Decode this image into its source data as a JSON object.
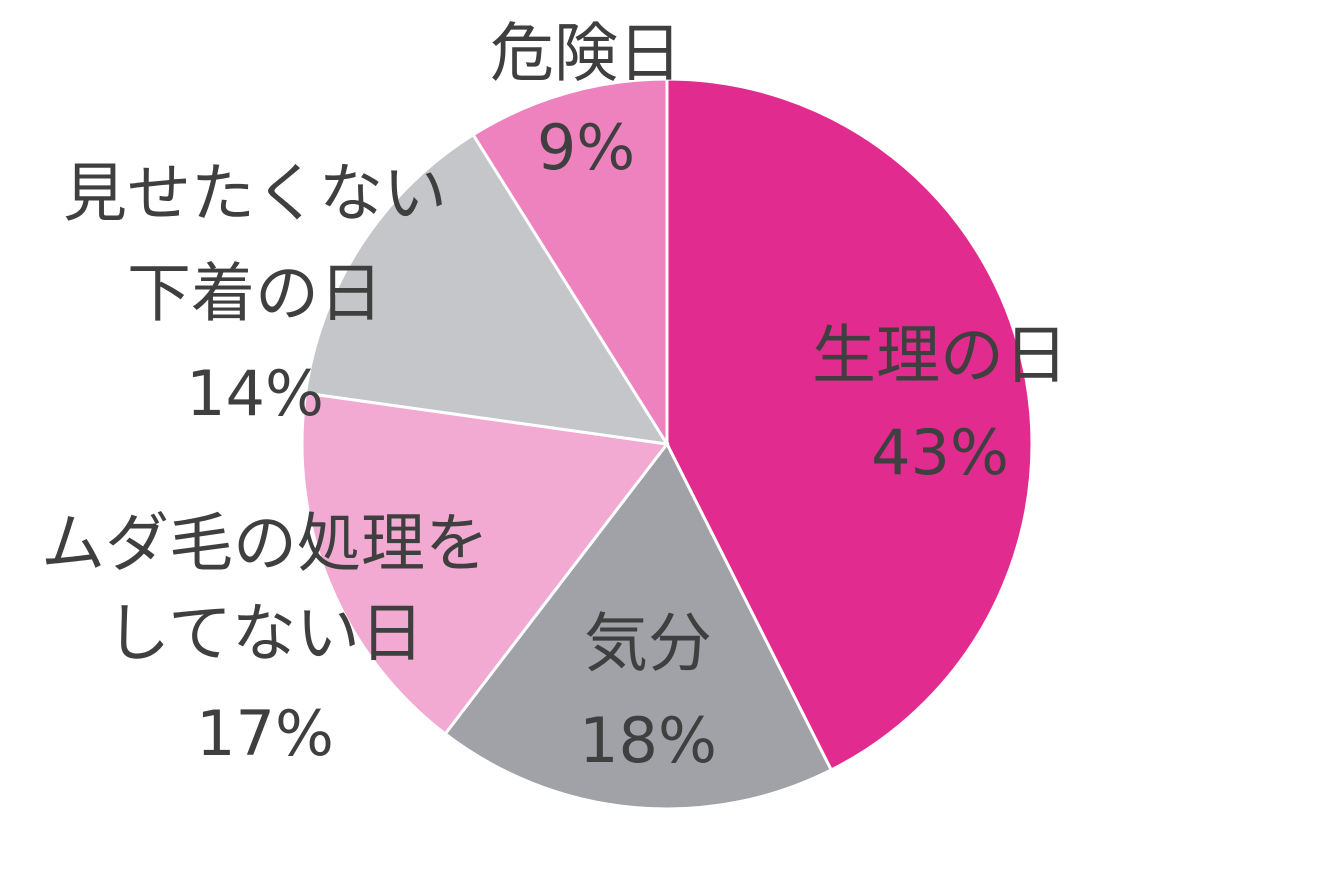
{
  "chart_data": {
    "type": "pie",
    "start_angle": "12 o'clock",
    "direction": "clockwise",
    "slices": [
      {
        "label": [
          "生理の日"
        ],
        "value": 43,
        "value_label": "43%",
        "color": "#e22b8f"
      },
      {
        "label": [
          "気分"
        ],
        "value": 18,
        "value_label": "18%",
        "color": "#a0a2a8"
      },
      {
        "label": [
          "ムダ毛の処理を",
          "してない日"
        ],
        "value": 17,
        "value_label": "17%",
        "color": "#f2aad2"
      },
      {
        "label": [
          "見せたくない",
          "下着の日"
        ],
        "value": 14,
        "value_label": "14%",
        "color": "#c5c6ca"
      },
      {
        "label": [
          "危険日"
        ],
        "value": 9,
        "value_label": "9%",
        "color": "#ee82bf"
      }
    ],
    "slice_border_color": "#ffffff",
    "text_color": "#3f3f3f"
  }
}
